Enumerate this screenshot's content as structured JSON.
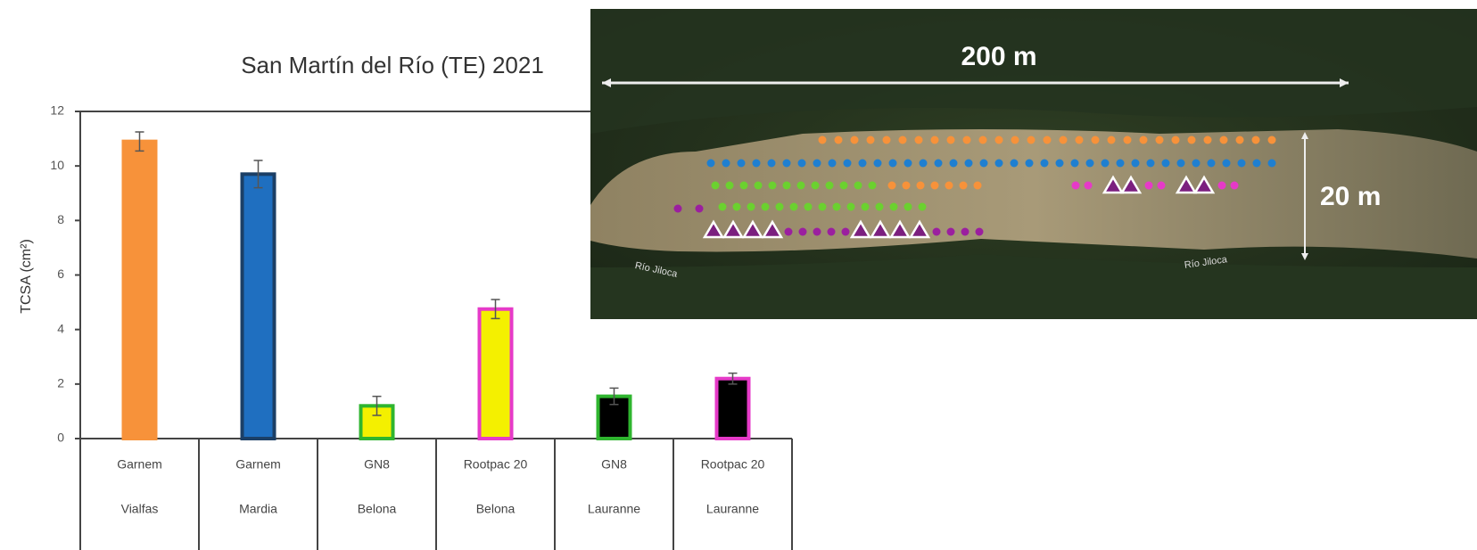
{
  "chart_data": {
    "type": "bar",
    "title": "San Martín del Río (TE) 2021",
    "ylabel": "TCSA (cm²)",
    "categories": [
      [
        "Garnem",
        "Vialfas"
      ],
      [
        "Garnem",
        "Mardia"
      ],
      [
        "GN8",
        "Belona"
      ],
      [
        "Rootpac 20",
        "Belona"
      ],
      [
        "GN8",
        "Lauranne"
      ],
      [
        "Rootpac 20",
        "Lauranne"
      ]
    ],
    "values": [
      10.9,
      9.7,
      1.2,
      4.75,
      1.55,
      2.2
    ],
    "errors": [
      0.35,
      0.5,
      0.35,
      0.35,
      0.3,
      0.2
    ],
    "fill_colors": [
      "#f7923a",
      "#1f6fc0",
      "#f4f000",
      "#f4f000",
      "#000000",
      "#000000"
    ],
    "edge_colors": [
      "#f7923a",
      "#1b3f66",
      "#2fb52f",
      "#e63ac8",
      "#2fb52f",
      "#e63ac8"
    ],
    "ylim": [
      0,
      12
    ],
    "yticks": [
      0,
      2,
      4,
      6,
      8,
      10,
      12
    ]
  },
  "image": {
    "scale_length": "200 m",
    "scale_width": "20 m",
    "river_labels": [
      "Río Jiloca",
      "Río Jiloca"
    ]
  }
}
